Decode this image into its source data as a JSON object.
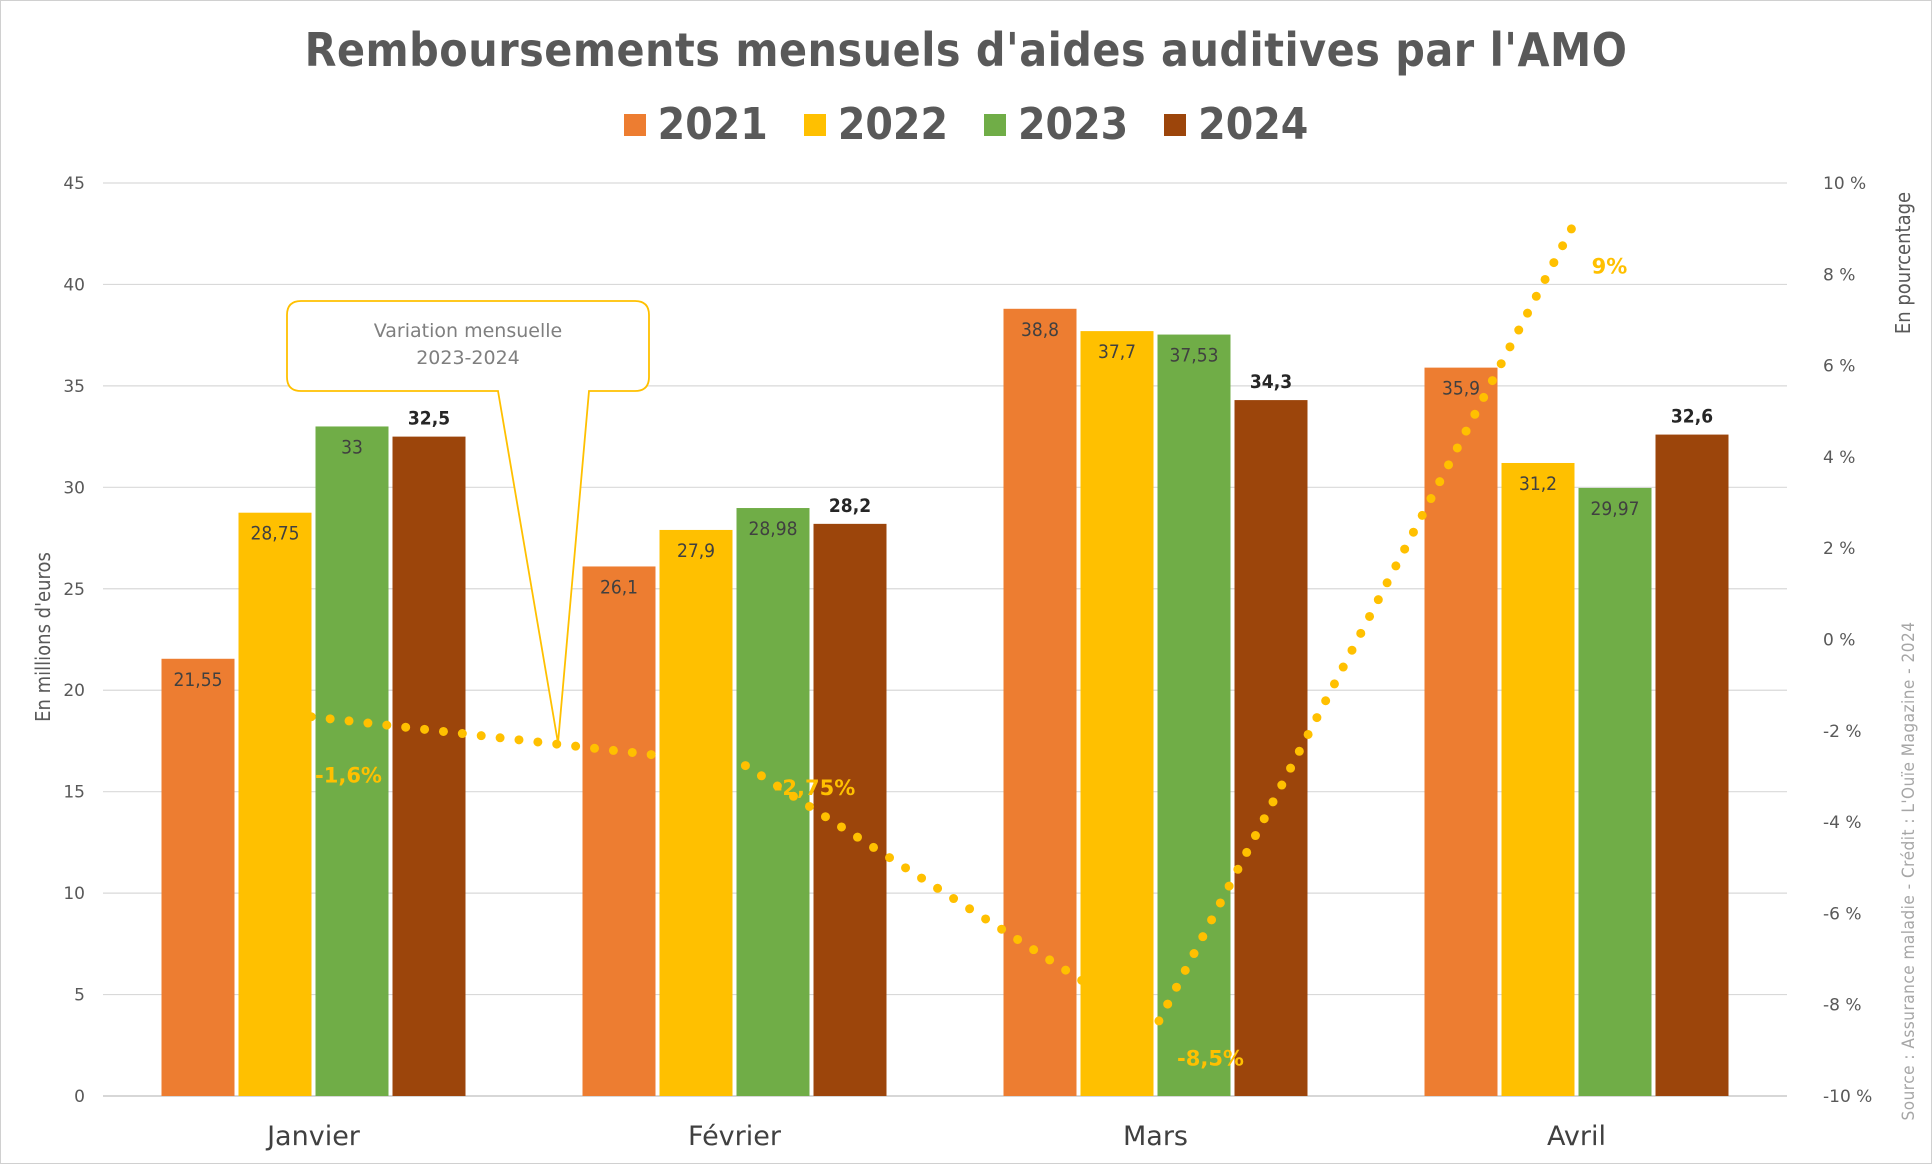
{
  "chart_data": {
    "type": "bar",
    "title": "Remboursements mensuels d'aides auditives par l'AMO",
    "categories": [
      "Janvier",
      "Février",
      "Mars",
      "Avril"
    ],
    "series": [
      {
        "name": "2021",
        "color": "#ED7D31",
        "values": [
          21.55,
          26.1,
          38.8,
          35.9
        ],
        "labels": [
          "21,55",
          "26,1",
          "38,8",
          "35,9"
        ]
      },
      {
        "name": "2022",
        "color": "#FFC000",
        "values": [
          28.75,
          27.9,
          37.7,
          31.2
        ],
        "labels": [
          "28,75",
          "27,9",
          "37,7",
          "31,2"
        ]
      },
      {
        "name": "2023",
        "color": "#70AD47",
        "values": [
          33,
          28.98,
          37.53,
          29.97
        ],
        "labels": [
          "33",
          "28,98",
          "37,53",
          "29,97"
        ]
      },
      {
        "name": "2024",
        "color": "#9C450B",
        "values": [
          32.5,
          28.2,
          34.3,
          32.6
        ],
        "labels": [
          "32,5",
          "28,2",
          "34,3",
          "32,6"
        ]
      }
    ],
    "ylabel": "En millions d'euros",
    "ylim": [
      0,
      45
    ],
    "yticks": [
      "0",
      "5",
      "10",
      "15",
      "20",
      "25",
      "30",
      "35",
      "40",
      "45"
    ],
    "y2label": "En pourcentage",
    "y2lim": [
      -10,
      10
    ],
    "y2ticks": [
      "-10 %",
      "-8 %",
      "-6 %",
      "-4 %",
      "-2 %",
      "0 %",
      "2 %",
      "4 %",
      "6 %",
      "8 %",
      "10 %"
    ],
    "variation_line": {
      "style": "dotted",
      "color": "#FFC000",
      "values": [
        -1.6,
        -2.75,
        -8.5,
        9
      ],
      "labels": [
        "-1,6%",
        "-2,75%",
        "-8,5%",
        "9%"
      ]
    },
    "callout": {
      "line1": "Variation mensuelle",
      "line2": "2023-2024"
    },
    "grid": true,
    "legend_position": "top"
  },
  "source_credit": "Source : Assurance maladie - Crédit : L'Ouïe Magazine - 2024"
}
